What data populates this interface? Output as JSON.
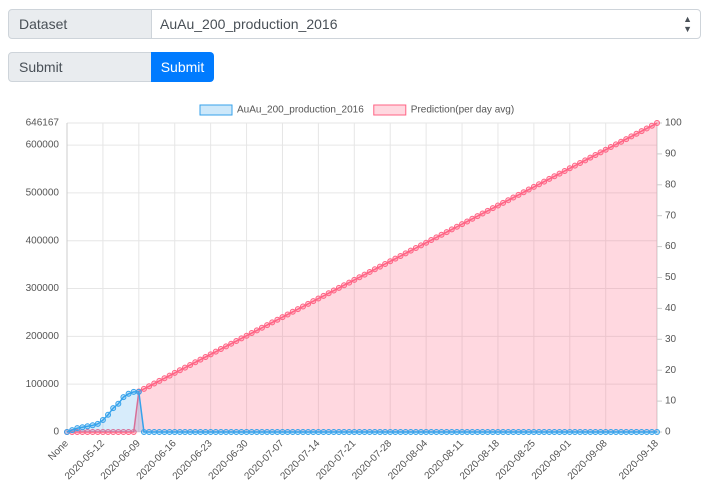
{
  "form": {
    "dataset_label": "Dataset",
    "dataset_value": "AuAu_200_production_2016",
    "submit_label": "Submit",
    "submit_button": "Submit"
  },
  "chart_data": {
    "type": "line",
    "legend": "top",
    "grid": true,
    "categories": [
      "None",
      null,
      null,
      null,
      null,
      null,
      null,
      "2020-05-12",
      null,
      null,
      null,
      null,
      null,
      null,
      "2020-06-09",
      null,
      null,
      null,
      null,
      null,
      null,
      "2020-06-16",
      null,
      null,
      null,
      null,
      null,
      null,
      "2020-06-23",
      null,
      null,
      null,
      null,
      null,
      null,
      "2020-06-30",
      null,
      null,
      null,
      null,
      null,
      null,
      "2020-07-07",
      null,
      null,
      null,
      null,
      null,
      null,
      "2020-07-14",
      null,
      null,
      null,
      null,
      null,
      null,
      "2020-07-21",
      null,
      null,
      null,
      null,
      null,
      null,
      "2020-07-28",
      null,
      null,
      null,
      null,
      null,
      null,
      "2020-08-04",
      null,
      null,
      null,
      null,
      null,
      null,
      "2020-08-11",
      null,
      null,
      null,
      null,
      null,
      null,
      "2020-08-18",
      null,
      null,
      null,
      null,
      null,
      null,
      "2020-08-25",
      null,
      null,
      null,
      null,
      null,
      null,
      "2020-09-01",
      null,
      null,
      null,
      null,
      null,
      null,
      "2020-09-08",
      null,
      null,
      null,
      null,
      null,
      null,
      null,
      null,
      null,
      "2020-09-18"
    ],
    "ylim": [
      0,
      646167
    ],
    "yticks": [
      0,
      100000,
      200000,
      300000,
      400000,
      500000,
      600000,
      646167
    ],
    "y2lim": [
      0,
      100
    ],
    "y2ticks": [
      0,
      10,
      20,
      30,
      40,
      50,
      60,
      70,
      80,
      90,
      100
    ],
    "series": [
      {
        "name": "AuAu_200_production_2016",
        "color": "#36a2eb",
        "values": [
          0,
          4000,
          8000,
          10000,
          12000,
          14000,
          17000,
          25000,
          36000,
          50000,
          59000,
          73000,
          80000,
          84000,
          84000,
          0,
          0,
          0,
          0,
          0,
          0,
          0,
          0,
          0,
          0,
          0,
          0,
          0,
          0,
          0,
          0,
          0,
          0,
          0,
          0,
          0,
          0,
          0,
          0,
          0,
          0,
          0,
          0,
          0,
          0,
          0,
          0,
          0,
          0,
          0,
          0,
          0,
          0,
          0,
          0,
          0,
          0,
          0,
          0,
          0,
          0,
          0,
          0,
          0,
          0,
          0,
          0,
          0,
          0,
          0,
          0,
          0,
          0,
          0,
          0,
          0,
          0,
          0,
          0,
          0,
          0,
          0,
          0,
          0,
          0,
          0,
          0,
          0,
          0,
          0,
          0,
          0,
          0,
          0,
          0,
          0,
          0,
          0,
          0,
          0,
          0,
          0,
          0,
          0,
          0,
          0,
          0,
          0,
          0,
          0,
          0,
          0,
          0,
          0,
          0,
          0
        ]
      },
      {
        "name": "Prediction(per day avg)",
        "color": "#ff6384",
        "axis": "y2",
        "values": [
          0,
          0,
          0,
          0,
          0,
          0,
          0,
          0,
          0,
          0,
          0,
          0,
          0,
          0,
          13.1,
          13.96,
          14.82,
          15.68,
          16.54,
          17.4,
          18.26,
          19.12,
          19.98,
          20.84,
          21.7,
          22.56,
          23.42,
          24.28,
          25.14,
          26,
          26.86,
          27.72,
          28.58,
          29.44,
          30.3,
          31.16,
          32.02,
          32.88,
          33.74,
          34.6,
          35.46,
          36.32,
          37.18,
          38.04,
          38.9,
          39.76,
          40.62,
          41.48,
          42.34,
          43.2,
          44.06,
          44.92,
          45.78,
          46.64,
          47.5,
          48.36,
          49.22,
          50.08,
          50.94,
          51.8,
          52.66,
          53.52,
          54.38,
          55.24,
          56.1,
          56.96,
          57.82,
          58.68,
          59.54,
          60.4,
          61.26,
          62.12,
          62.98,
          63.84,
          64.7,
          65.56,
          66.42,
          67.28,
          68.14,
          69,
          69.86,
          70.72,
          71.58,
          72.44,
          73.3,
          74.16,
          75.02,
          75.88,
          76.74,
          77.6,
          78.46,
          79.32,
          80.18,
          81.04,
          81.9,
          82.76,
          83.62,
          84.48,
          85.34,
          86.2,
          87.06,
          87.92,
          88.78,
          89.64,
          90.5,
          91.36,
          92.22,
          93.08,
          93.94,
          94.8,
          95.66,
          96.52,
          97.38,
          98.24,
          99.1,
          100
        ]
      }
    ]
  }
}
